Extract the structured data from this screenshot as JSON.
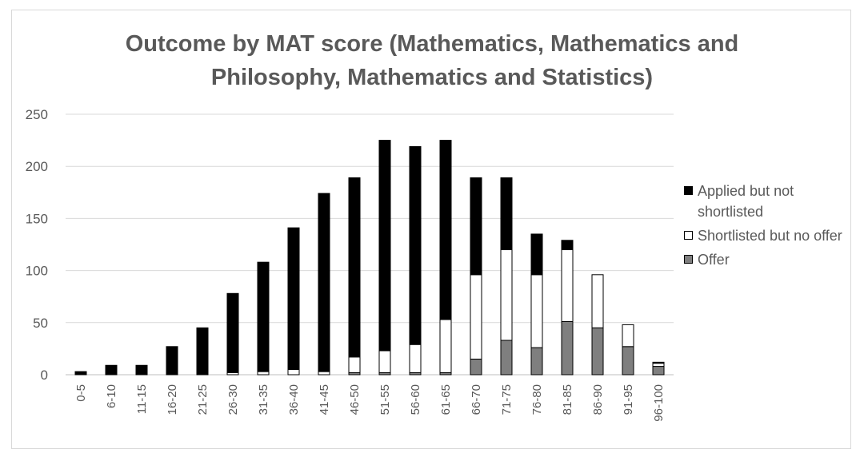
{
  "chart_data": {
    "type": "bar",
    "stacked": true,
    "title": "Outcome by MAT score (Mathematics, Mathematics and\nPhilosophy, Mathematics and Statistics)",
    "xlabel": "",
    "ylabel": "",
    "ylim": [
      0,
      250
    ],
    "yticks": [
      "0",
      "50",
      "100",
      "150",
      "200",
      "250"
    ],
    "grid": true,
    "legend_position": "right",
    "categories": [
      "0-5",
      "6-10",
      "11-15",
      "16-20",
      "21-25",
      "26-30",
      "31-35",
      "36-40",
      "41-45",
      "46-50",
      "51-55",
      "56-60",
      "61-65",
      "66-70",
      "71-75",
      "76-80",
      "81-85",
      "86-90",
      "91-95",
      "96-100"
    ],
    "series": [
      {
        "name": "Offer",
        "color": "#7f7f7f",
        "values": [
          0,
          0,
          0,
          0,
          0,
          0,
          0,
          0,
          0,
          2,
          2,
          2,
          2,
          15,
          33,
          26,
          51,
          45,
          27,
          8
        ]
      },
      {
        "name": "Shortlisted but no offer",
        "color": "#ffffff",
        "values": [
          0,
          0,
          0,
          0,
          0,
          2,
          3,
          5,
          3,
          15,
          21,
          27,
          51,
          81,
          87,
          70,
          69,
          51,
          21,
          3
        ]
      },
      {
        "name": "Applied but not shortlisted",
        "color": "#000000",
        "values": [
          3,
          9,
          9,
          27,
          45,
          76,
          105,
          136,
          171,
          172,
          202,
          190,
          172,
          93,
          69,
          39,
          9,
          0,
          0,
          1
        ]
      }
    ]
  },
  "legend": [
    {
      "label": "Applied but not shortlisted",
      "color": "#000000"
    },
    {
      "label": "Shortlisted but no offer",
      "color": "#ffffff"
    },
    {
      "label": "Offer",
      "color": "#7f7f7f"
    }
  ]
}
